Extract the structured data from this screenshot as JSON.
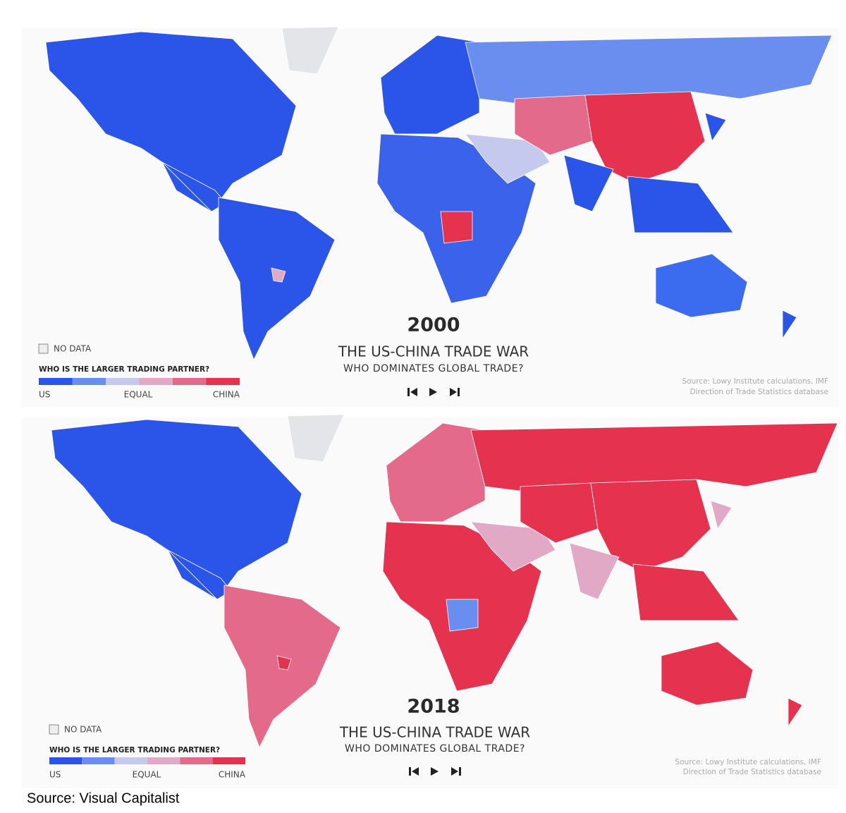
{
  "panels": [
    {
      "year": "2000",
      "title": "THE US-CHINA TRADE WAR",
      "subtitle": "WHO DOMINATES GLOBAL TRADE?",
      "no_data": "NO DATA",
      "legend": {
        "title": "WHO IS THE LARGER TRADING PARTNER?",
        "labels": [
          "US",
          "EQUAL",
          "CHINA"
        ],
        "colors": [
          "#2b55e8",
          "#6a8ef0",
          "#c5c9ee",
          "#e2a9c6",
          "#e36a8b",
          "#e5334f"
        ]
      },
      "source": [
        "Source: Lowy Institute calculations, IMF",
        "Direction of Trade Statistics database"
      ]
    },
    {
      "year": "2018",
      "title": "THE US-CHINA TRADE WAR",
      "subtitle": "WHO DOMINATES GLOBAL TRADE?",
      "no_data": "NO DATA",
      "legend": {
        "title": "WHO IS THE LARGER TRADING PARTNER?",
        "labels": [
          "US",
          "EQUAL",
          "CHINA"
        ],
        "colors": [
          "#2b55e8",
          "#6a8ef0",
          "#c5c9ee",
          "#e2a9c6",
          "#e36a8b",
          "#e5334f"
        ]
      },
      "source": [
        "Source: Lowy Institute calculations, IMF",
        "Direction of Trade Statistics database"
      ]
    }
  ],
  "footer": "Source: Visual Capitalist"
}
